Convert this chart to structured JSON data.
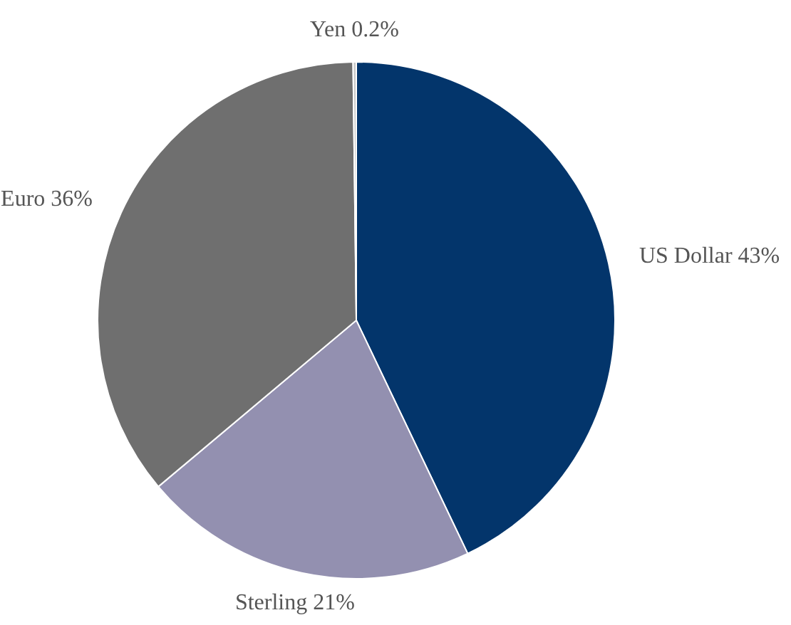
{
  "chart_data": {
    "type": "pie",
    "categories": [
      "US Dollar",
      "Sterling",
      "Euro",
      "Yen"
    ],
    "values": [
      43,
      21,
      36,
      0.2
    ],
    "value_labels": [
      "43%",
      "21%",
      "36%",
      "0.2%"
    ],
    "colors": [
      "#03356b",
      "#9390b0",
      "#6f6f6f",
      "#c8c8c8"
    ],
    "legend": false
  }
}
